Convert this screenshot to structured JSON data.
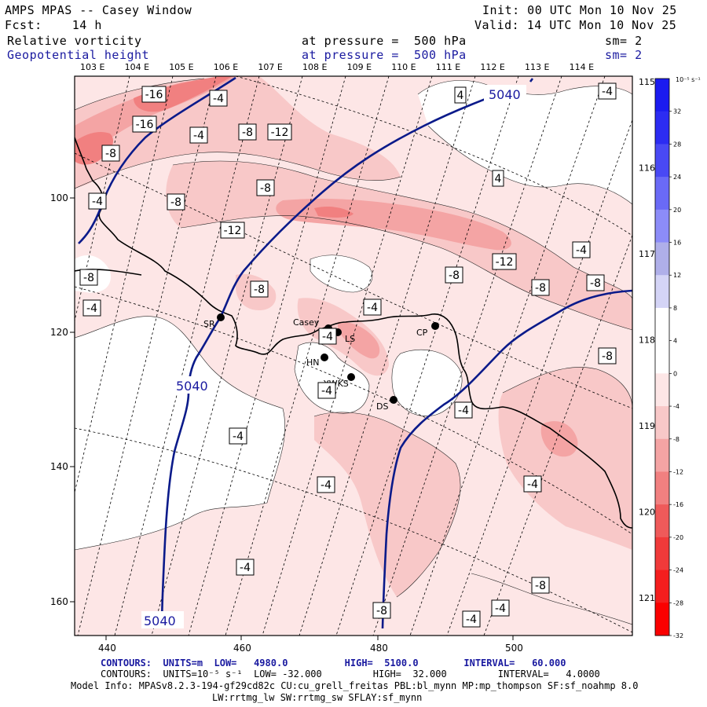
{
  "header": {
    "title": "AMPS MPAS -- Casey Window",
    "forecast": "Fcst:    14 h",
    "init": "Init: 00 UTC Mon 10 Nov 25",
    "valid": "Valid: 14 UTC Mon 10 Nov 25",
    "field1": {
      "name": "Relative vorticity",
      "level": "at pressure =  500 hPa",
      "smooth": "sm= 2"
    },
    "field2": {
      "name": "Geopotential height",
      "level": "at pressure =  500 hPa",
      "smooth": "sm= 2"
    }
  },
  "chart_data": {
    "type": "contour-map",
    "x_ticks": [
      "440",
      "460",
      "480",
      "500"
    ],
    "y_ticks": [
      "100",
      "120",
      "140",
      "160"
    ],
    "top_lon_labels": [
      "103 E",
      "104 E",
      "105 E",
      "106 E",
      "107 E",
      "108 E",
      "109 E",
      "110 E",
      "111 E",
      "112 E",
      "113 E",
      "114 E"
    ],
    "right_lon_labels": [
      "115 E",
      "116 E",
      "117 E",
      "118 E",
      "119 E",
      "120 E",
      "121 E"
    ],
    "colorbar": {
      "unit": "10⁻⁵ s⁻¹",
      "ticks": [
        "32",
        "28",
        "24",
        "20",
        "16",
        "12",
        "8",
        "4",
        "0",
        "-4",
        "-8",
        "-12",
        "-16",
        "-20",
        "-24",
        "-28",
        "-32"
      ],
      "colors": [
        "#1b1bf0",
        "#2c2cf2",
        "#4949f4",
        "#6a6af6",
        "#8c8cf8",
        "#afafe9",
        "#d4d4f6",
        "#ffffff",
        "#ffffff",
        "#fde6e6",
        "#f8c8c8",
        "#f4a4a4",
        "#f18080",
        "#ef5a5a",
        "#f03a3a",
        "#f41e1e",
        "#fa0000"
      ]
    },
    "vorticity_labels": [
      "-16",
      "-16",
      "-4",
      "-4",
      "-8",
      "-12",
      "-8",
      "-8",
      "-4",
      "-8",
      "-12",
      "-8",
      "-4",
      "-8",
      "-4",
      "-4",
      "-8",
      "-12",
      "-8",
      "-4",
      "-8",
      "-8",
      "4",
      "4",
      "-4",
      "-4",
      "-4",
      "-4",
      "-4",
      "-8",
      "-4",
      "-4",
      "-8",
      "-4",
      "-4"
    ],
    "height_labels": [
      "5040",
      "5040",
      "5040"
    ],
    "stations": [
      {
        "name": "SR"
      },
      {
        "name": "Casey"
      },
      {
        "name": "LS"
      },
      {
        "name": "CP"
      },
      {
        "name": "HN"
      },
      {
        "name": "YWKS"
      },
      {
        "name": "DS"
      }
    ]
  },
  "footer": {
    "line1": "CONTOURS:  UNITS=m  LOW=   4980.0          HIGH=  5100.0        INTERVAL=   60.000",
    "line2": "CONTOURS:  UNITS=10⁻⁵ s⁻¹  LOW= -32.000         HIGH=  32.000         INTERVAL=   4.0000",
    "line3": "Model Info: MPASv8.2.3-194-gf29cd82c CU:cu_grell_freitas PBL:bl_mynn MP:mp_thompson SF:sf_noahmp 8.0",
    "line4": "LW:rrtmg_lw SW:rrtmg_sw SFLAY:sf_mynn"
  }
}
